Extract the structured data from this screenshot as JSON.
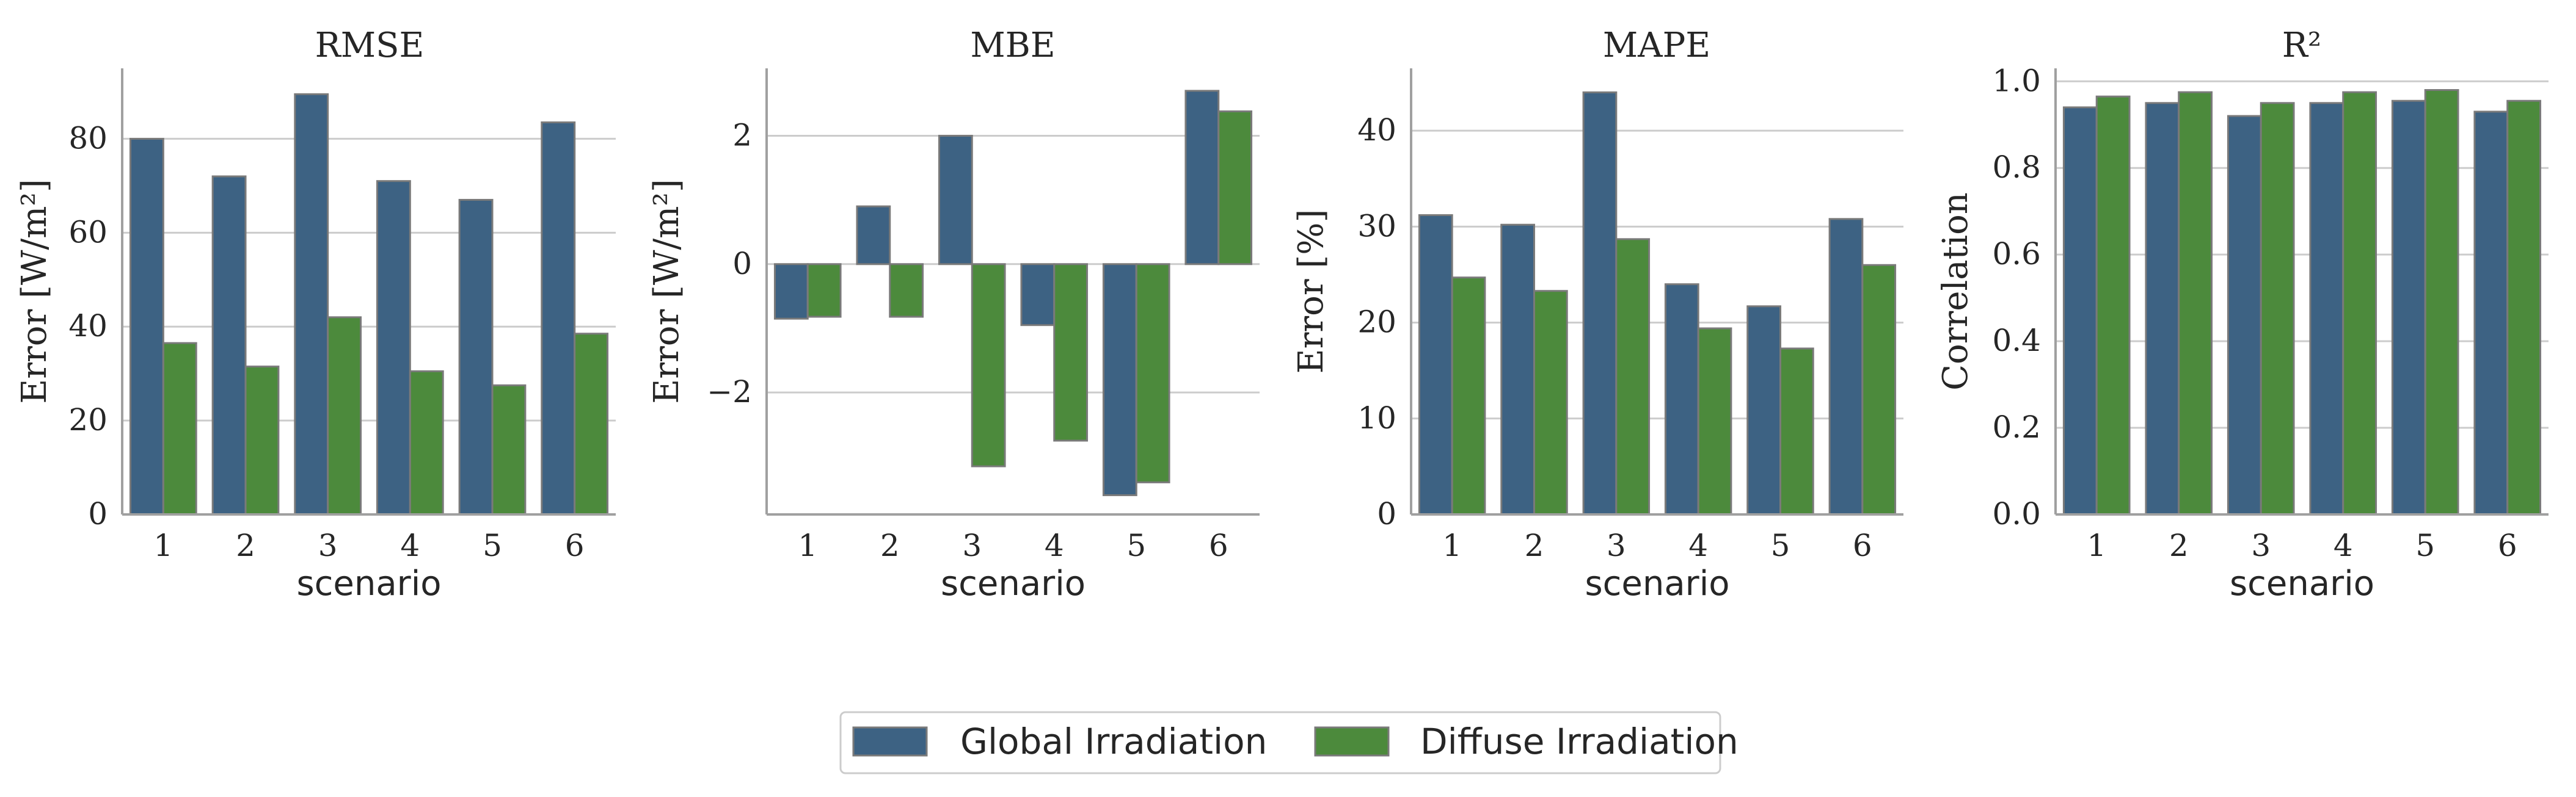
{
  "colors": {
    "global": "#3d6283",
    "diffuse": "#4c8a3c",
    "bar_edge": "#7a7a7a",
    "grid": "#cccccc",
    "axis": "#a0a0a0"
  },
  "legend": {
    "entries": [
      "Global Irradiation",
      "Diffuse Irradiation"
    ],
    "placement": "bottom-center"
  },
  "chart_data": [
    {
      "type": "bar",
      "title": "RMSE",
      "xlabel": "scenario",
      "ylabel": "Error [W/m²]",
      "categories": [
        "1",
        "2",
        "3",
        "4",
        "5",
        "6"
      ],
      "ylim": [
        0,
        95
      ],
      "yticks": [
        0,
        20,
        40,
        60,
        80
      ],
      "ytick_labels": [
        "0",
        "20",
        "40",
        "60",
        "80"
      ],
      "series": [
        {
          "name": "Global Irradiation",
          "values": [
            80,
            72,
            89.5,
            71,
            67,
            83.5
          ]
        },
        {
          "name": "Diffuse Irradiation",
          "values": [
            36.5,
            31.5,
            42,
            30.5,
            27.5,
            38.5
          ]
        }
      ]
    },
    {
      "type": "bar",
      "title": "MBE",
      "xlabel": "scenario",
      "ylabel": "Error [W/m²]",
      "categories": [
        "1",
        "2",
        "3",
        "4",
        "5",
        "6"
      ],
      "ylim": [
        -3.9,
        3.05
      ],
      "yticks": [
        -2,
        0,
        2
      ],
      "ytick_labels": [
        "−2",
        "0",
        "2"
      ],
      "series": [
        {
          "name": "Global Irradiation",
          "values": [
            -0.85,
            0.9,
            2.0,
            -0.95,
            -3.6,
            2.7
          ]
        },
        {
          "name": "Diffuse Irradiation",
          "values": [
            -0.82,
            -0.82,
            -3.15,
            -2.75,
            -3.4,
            2.38
          ]
        }
      ]
    },
    {
      "type": "bar",
      "title": "MAPE",
      "xlabel": "scenario",
      "ylabel": "Error [%]",
      "categories": [
        "1",
        "2",
        "3",
        "4",
        "5",
        "6"
      ],
      "ylim": [
        0,
        46.5
      ],
      "yticks": [
        0,
        10,
        20,
        30,
        40
      ],
      "ytick_labels": [
        "0",
        "10",
        "20",
        "30",
        "40"
      ],
      "series": [
        {
          "name": "Global Irradiation",
          "values": [
            31.2,
            30.2,
            44,
            24,
            21.7,
            30.8
          ]
        },
        {
          "name": "Diffuse Irradiation",
          "values": [
            24.7,
            23.3,
            28.7,
            19.4,
            17.3,
            26
          ]
        }
      ]
    },
    {
      "type": "bar",
      "title": "R²",
      "xlabel": "scenario",
      "ylabel": "Correlation",
      "categories": [
        "1",
        "2",
        "3",
        "4",
        "5",
        "6"
      ],
      "ylim": [
        0,
        1.03
      ],
      "yticks": [
        0,
        0.2,
        0.4,
        0.6,
        0.8,
        1.0
      ],
      "ytick_labels": [
        "0.0",
        "0.2",
        "0.4",
        "0.6",
        "0.8",
        "1.0"
      ],
      "series": [
        {
          "name": "Global Irradiation",
          "values": [
            0.94,
            0.95,
            0.92,
            0.95,
            0.955,
            0.93
          ]
        },
        {
          "name": "Diffuse Irradiation",
          "values": [
            0.965,
            0.975,
            0.95,
            0.975,
            0.98,
            0.955
          ]
        }
      ]
    }
  ]
}
